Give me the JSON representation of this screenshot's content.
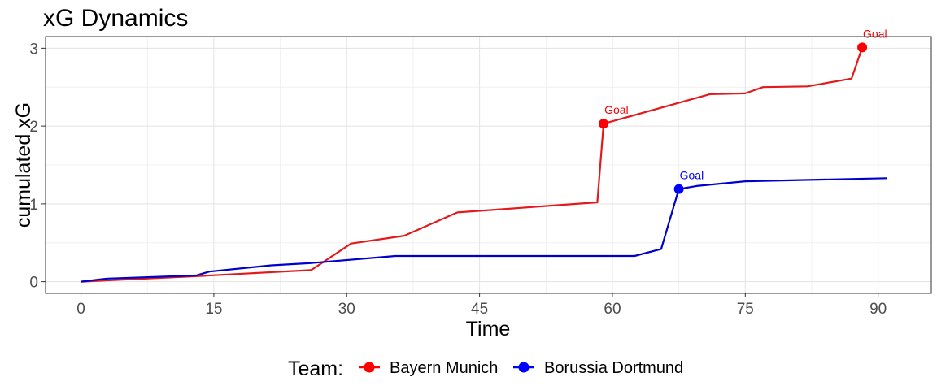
{
  "chart_data": {
    "type": "line",
    "title": "xG Dynamics",
    "xlabel": "Time",
    "ylabel": "cumulated xG",
    "xlim": [
      -4,
      96
    ],
    "ylim": [
      -0.15,
      3.15
    ],
    "x_ticks": [
      0,
      15,
      30,
      45,
      60,
      75,
      90
    ],
    "y_ticks": [
      0,
      1,
      2,
      3
    ],
    "grid": true,
    "legend": {
      "title": "Team:",
      "position": "bottom"
    },
    "series": [
      {
        "name": "Bayern Munich",
        "color": "#ff0000",
        "line_color": "#e31a1c",
        "points": [
          [
            0,
            0
          ],
          [
            13,
            0.07
          ],
          [
            26,
            0.15
          ],
          [
            30.5,
            0.49
          ],
          [
            36.5,
            0.59
          ],
          [
            42.5,
            0.89
          ],
          [
            58.3,
            1.02
          ],
          [
            59,
            2.03
          ],
          [
            71,
            2.41
          ],
          [
            75,
            2.42
          ],
          [
            77,
            2.5
          ],
          [
            82,
            2.51
          ],
          [
            87,
            2.61
          ],
          [
            88.2,
            3.01
          ]
        ],
        "goals": [
          {
            "x": 59,
            "y": 2.03,
            "label": "Goal"
          },
          {
            "x": 88.2,
            "y": 3.01,
            "label": "Goal"
          }
        ]
      },
      {
        "name": "Borussia Dortmund",
        "color": "#0000ff",
        "line_color": "#0000cc",
        "points": [
          [
            0,
            0
          ],
          [
            3,
            0.04
          ],
          [
            13,
            0.08
          ],
          [
            14.5,
            0.13
          ],
          [
            21.5,
            0.21
          ],
          [
            26,
            0.24
          ],
          [
            35.5,
            0.33
          ],
          [
            62.5,
            0.33
          ],
          [
            65.5,
            0.42
          ],
          [
            67.5,
            1.19
          ],
          [
            69.5,
            1.23
          ],
          [
            75,
            1.29
          ],
          [
            91,
            1.33
          ]
        ],
        "goals": [
          {
            "x": 67.5,
            "y": 1.19,
            "label": "Goal"
          }
        ]
      }
    ]
  }
}
